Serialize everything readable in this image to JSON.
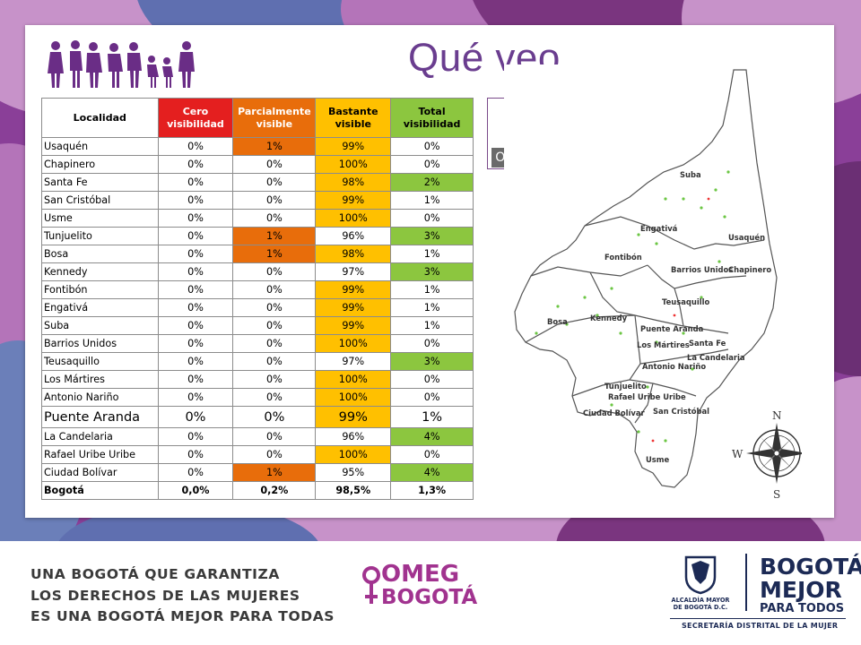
{
  "slide": {
    "title": "Qué veo",
    "people_icon": "women-group-icon"
  },
  "table": {
    "headers": [
      "Localidad",
      "Cero visibilidad",
      "Parcialmente visible",
      "Bastante visible",
      "Total visibilidad"
    ],
    "rows": [
      {
        "name": "Usaquén",
        "cero": "0%",
        "parcial": "1%",
        "bastante": "99%",
        "total": "0%"
      },
      {
        "name": "Chapinero",
        "cero": "0%",
        "parcial": "0%",
        "bastante": "100%",
        "total": "0%"
      },
      {
        "name": "Santa Fe",
        "cero": "0%",
        "parcial": "0%",
        "bastante": "98%",
        "total": "2%"
      },
      {
        "name": "San Cristóbal",
        "cero": "0%",
        "parcial": "0%",
        "bastante": "99%",
        "total": "1%"
      },
      {
        "name": "Usme",
        "cero": "0%",
        "parcial": "0%",
        "bastante": "100%",
        "total": "0%"
      },
      {
        "name": "Tunjuelito",
        "cero": "0%",
        "parcial": "1%",
        "bastante": "96%",
        "total": "3%"
      },
      {
        "name": "Bosa",
        "cero": "0%",
        "parcial": "1%",
        "bastante": "98%",
        "total": "1%"
      },
      {
        "name": "Kennedy",
        "cero": "0%",
        "parcial": "0%",
        "bastante": "97%",
        "total": "3%"
      },
      {
        "name": "Fontibón",
        "cero": "0%",
        "parcial": "0%",
        "bastante": "99%",
        "total": "1%"
      },
      {
        "name": "Engativá",
        "cero": "0%",
        "parcial": "0%",
        "bastante": "99%",
        "total": "1%"
      },
      {
        "name": "Suba",
        "cero": "0%",
        "parcial": "0%",
        "bastante": "99%",
        "total": "1%"
      },
      {
        "name": "Barrios Unidos",
        "cero": "0%",
        "parcial": "0%",
        "bastante": "100%",
        "total": "0%"
      },
      {
        "name": "Teusaquillo",
        "cero": "0%",
        "parcial": "0%",
        "bastante": "97%",
        "total": "3%"
      },
      {
        "name": "Los Mártires",
        "cero": "0%",
        "parcial": "0%",
        "bastante": "100%",
        "total": "0%"
      },
      {
        "name": "Antonio Nariño",
        "cero": "0%",
        "parcial": "0%",
        "bastante": "100%",
        "total": "0%"
      },
      {
        "name": "Puente Aranda",
        "cero": "0%",
        "parcial": "0%",
        "bastante": "99%",
        "total": "1%"
      },
      {
        "name": "La Candelaria",
        "cero": "0%",
        "parcial": "0%",
        "bastante": "96%",
        "total": "4%"
      },
      {
        "name": "Rafael Uribe Uribe",
        "cero": "0%",
        "parcial": "0%",
        "bastante": "100%",
        "total": "0%"
      },
      {
        "name": "Ciudad Bolívar",
        "cero": "0%",
        "parcial": "1%",
        "bastante": "95%",
        "total": "4%"
      },
      {
        "name": "Bogotá",
        "cero": "0,0%",
        "parcial": "0,2%",
        "bastante": "98,5%",
        "total": "1,3%"
      }
    ]
  },
  "badge": {
    "label": "Openness"
  },
  "map": {
    "labels": [
      "Suba",
      "Usaquén",
      "Engativá",
      "Fontibón",
      "Barrios Unidos",
      "Chapinero",
      "Teusaquillo",
      "Bosa",
      "Kennedy",
      "Puente Aranda",
      "Los Mártires",
      "Santa Fe",
      "La Candelaria",
      "Antonio Nariño",
      "Tunjuelito",
      "Rafael Uribe Uribe",
      "San Cristóbal",
      "Ciudad Bolívar",
      "Usme"
    ],
    "compass": {
      "n": "N",
      "s": "S",
      "e": "E",
      "w": "W"
    }
  },
  "footer": {
    "slogan": [
      "UNA BOGOTÁ QUE GARANTIZA",
      "LOS DERECHOS DE LAS MUJERES",
      "ES UNA BOGOTÁ MEJOR PARA TODAS"
    ],
    "omeg_line1": "OMEG",
    "omeg_line2": "BOGOTÁ",
    "alcaldia": "ALCALDÍA MAYOR DE BOGOTÁ D.C.",
    "bogota_a": "BOGOTÁ",
    "bogota_b": "MEJOR",
    "bogota_c": "PARA TODOS",
    "secretaria": "SECRETARÍA DISTRITAL DE LA MUJER"
  }
}
